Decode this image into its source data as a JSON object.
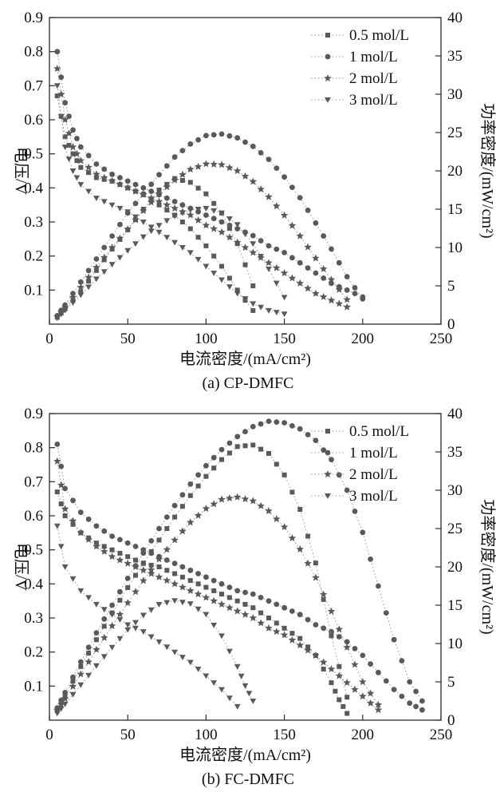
{
  "page": {
    "background": "#ffffff"
  },
  "chart_data": [
    {
      "type": "scatter",
      "title": "(a) CP-DMFC",
      "xlabel": "电流密度/(mA/cm²)",
      "ylabel_left": "电压/V",
      "ylabel_right": "功率密度/(mW/cm²)",
      "xlim": [
        0,
        250
      ],
      "xticks": [
        0,
        50,
        100,
        150,
        200,
        250
      ],
      "ylim_left": [
        0,
        0.9
      ],
      "yticks_left": [
        0.1,
        0.2,
        0.3,
        0.4,
        0.5,
        0.6,
        0.7,
        0.8,
        0.9
      ],
      "ylim_right": [
        0,
        40
      ],
      "yticks_right": [
        0,
        5,
        10,
        15,
        20,
        25,
        30,
        35,
        40
      ],
      "grid": false,
      "legend_position": "top-right",
      "marker_color": "#595959",
      "line_color": "#9a9a9a",
      "legend": [
        {
          "label": "0.5 mol/L",
          "marker": "square"
        },
        {
          "label": "1 mol/L",
          "marker": "circle"
        },
        {
          "label": "2 mol/L",
          "marker": "star"
        },
        {
          "label": "3 mol/L",
          "marker": "triangle-down"
        }
      ],
      "series": [
        {
          "name": "0.5 mol/L",
          "quantity": "voltage",
          "axis": "left",
          "marker": "square",
          "x": [
            5,
            10,
            15,
            20,
            30,
            40,
            50,
            60,
            70,
            80,
            90,
            100,
            110,
            120,
            130
          ],
          "y": [
            0.67,
            0.55,
            0.5,
            0.46,
            0.43,
            0.42,
            0.4,
            0.38,
            0.35,
            0.32,
            0.28,
            0.23,
            0.17,
            0.1,
            0.04
          ]
        },
        {
          "name": "1 mol/L",
          "quantity": "voltage",
          "axis": "left",
          "marker": "circle",
          "x": [
            5,
            10,
            15,
            20,
            30,
            40,
            50,
            60,
            70,
            80,
            90,
            100,
            110,
            120,
            130,
            140,
            150,
            160,
            170,
            180,
            190,
            200
          ],
          "y": [
            0.8,
            0.65,
            0.57,
            0.52,
            0.47,
            0.44,
            0.42,
            0.4,
            0.38,
            0.36,
            0.34,
            0.32,
            0.3,
            0.28,
            0.26,
            0.23,
            0.21,
            0.18,
            0.15,
            0.12,
            0.1,
            0.08
          ]
        },
        {
          "name": "2 mol/L",
          "quantity": "voltage",
          "axis": "left",
          "marker": "star",
          "x": [
            5,
            10,
            15,
            20,
            30,
            40,
            50,
            60,
            70,
            80,
            90,
            100,
            110,
            120,
            130,
            140,
            150,
            160,
            170,
            180,
            190
          ],
          "y": [
            0.75,
            0.6,
            0.52,
            0.48,
            0.44,
            0.42,
            0.4,
            0.38,
            0.36,
            0.34,
            0.32,
            0.29,
            0.27,
            0.24,
            0.21,
            0.18,
            0.15,
            0.12,
            0.09,
            0.07,
            0.05
          ]
        },
        {
          "name": "3 mol/L",
          "quantity": "voltage",
          "axis": "left",
          "marker": "triangle-down",
          "x": [
            5,
            10,
            15,
            20,
            30,
            40,
            50,
            60,
            70,
            80,
            90,
            100,
            110,
            120,
            130,
            140,
            150
          ],
          "y": [
            0.7,
            0.52,
            0.45,
            0.41,
            0.37,
            0.35,
            0.33,
            0.3,
            0.27,
            0.24,
            0.21,
            0.17,
            0.13,
            0.09,
            0.06,
            0.04,
            0.03
          ]
        },
        {
          "name": "0.5 mol/L",
          "quantity": "power",
          "axis": "right",
          "marker": "square",
          "x": [
            5,
            10,
            20,
            30,
            40,
            50,
            60,
            70,
            80,
            90,
            100,
            110,
            120,
            130
          ],
          "y": [
            0.9,
            2,
            4.2,
            7,
            9.8,
            12.3,
            15,
            17.5,
            19,
            18.5,
            17,
            14.5,
            10.5,
            5
          ]
        },
        {
          "name": "1 mol/L",
          "quantity": "power",
          "axis": "right",
          "marker": "circle",
          "x": [
            5,
            10,
            20,
            30,
            40,
            50,
            60,
            70,
            80,
            90,
            100,
            110,
            120,
            130,
            140,
            150,
            160,
            170,
            180,
            190,
            200
          ],
          "y": [
            1.1,
            2.5,
            5.5,
            8.5,
            11.5,
            14.5,
            17,
            19.5,
            21.8,
            23.5,
            24.6,
            24.8,
            24.3,
            23.2,
            21.5,
            19.2,
            16.5,
            13.2,
            9.8,
            6.2,
            3.3
          ]
        },
        {
          "name": "2 mol/L",
          "quantity": "power",
          "axis": "right",
          "marker": "star",
          "x": [
            5,
            10,
            20,
            30,
            40,
            50,
            60,
            70,
            80,
            90,
            100,
            110,
            120,
            130,
            140,
            150,
            160,
            170,
            180,
            190
          ],
          "y": [
            1,
            2.2,
            4.8,
            7.4,
            10,
            12.4,
            14.8,
            17,
            18.8,
            20.2,
            20.9,
            20.8,
            20,
            18.6,
            16.6,
            14.2,
            11.5,
            8.6,
            5.8,
            3.2
          ]
        },
        {
          "name": "3 mol/L",
          "quantity": "power",
          "axis": "right",
          "marker": "triangle-down",
          "x": [
            5,
            10,
            20,
            30,
            40,
            50,
            60,
            70,
            80,
            90,
            100,
            110,
            120,
            130,
            140,
            150
          ],
          "y": [
            0.8,
            1.8,
            3.8,
            5.9,
            7.8,
            9.6,
            11.4,
            12.9,
            14.1,
            14.9,
            15.1,
            14.5,
            13,
            10.5,
            7.2,
            3.5
          ]
        }
      ]
    },
    {
      "type": "scatter",
      "title": "(b) FC-DMFC",
      "xlabel": "电流密度/(mA/cm²)",
      "ylabel_left": "电压/V",
      "ylabel_right": "功率密度/(mW/cm²)",
      "xlim": [
        0,
        250
      ],
      "xticks": [
        0,
        50,
        100,
        150,
        200,
        250
      ],
      "ylim_left": [
        0,
        0.9
      ],
      "yticks_left": [
        0.1,
        0.2,
        0.3,
        0.4,
        0.5,
        0.6,
        0.7,
        0.8,
        0.9
      ],
      "ylim_right": [
        0,
        40
      ],
      "yticks_right": [
        0,
        5,
        10,
        15,
        20,
        25,
        30,
        35,
        40
      ],
      "grid": false,
      "legend_position": "top-right",
      "marker_color": "#595959",
      "line_color": "#9a9a9a",
      "legend": [
        {
          "label": "0.5 mol/L",
          "marker": "square"
        },
        {
          "label": "1 mol/L",
          "marker": "circle"
        },
        {
          "label": "2 mol/L",
          "marker": "star"
        },
        {
          "label": "3 mol/L",
          "marker": "triangle-down"
        }
      ],
      "series": [
        {
          "name": "0.5 mol/L",
          "quantity": "voltage",
          "axis": "left",
          "marker": "square",
          "x": [
            5,
            10,
            20,
            30,
            40,
            50,
            60,
            70,
            80,
            90,
            100,
            110,
            120,
            130,
            140,
            150,
            160,
            170,
            180,
            185,
            190
          ],
          "y": [
            0.67,
            0.6,
            0.55,
            0.52,
            0.5,
            0.48,
            0.46,
            0.45,
            0.43,
            0.41,
            0.39,
            0.37,
            0.35,
            0.33,
            0.3,
            0.27,
            0.24,
            0.19,
            0.11,
            0.06,
            0.02
          ]
        },
        {
          "name": "1 mol/L",
          "quantity": "voltage",
          "axis": "left",
          "marker": "circle",
          "x": [
            5,
            10,
            20,
            30,
            40,
            50,
            60,
            70,
            80,
            90,
            100,
            110,
            120,
            130,
            140,
            150,
            160,
            170,
            180,
            190,
            200,
            210,
            220,
            230,
            238
          ],
          "y": [
            0.81,
            0.68,
            0.61,
            0.57,
            0.54,
            0.52,
            0.5,
            0.48,
            0.46,
            0.44,
            0.42,
            0.4,
            0.38,
            0.37,
            0.35,
            0.33,
            0.31,
            0.28,
            0.26,
            0.23,
            0.19,
            0.14,
            0.09,
            0.05,
            0.03
          ]
        },
        {
          "name": "2 mol/L",
          "quantity": "voltage",
          "axis": "left",
          "marker": "star",
          "x": [
            5,
            10,
            20,
            30,
            40,
            50,
            60,
            70,
            80,
            90,
            100,
            110,
            120,
            130,
            140,
            150,
            160,
            170,
            180,
            190,
            200,
            210
          ],
          "y": [
            0.76,
            0.62,
            0.55,
            0.51,
            0.48,
            0.46,
            0.44,
            0.42,
            0.4,
            0.38,
            0.36,
            0.34,
            0.32,
            0.3,
            0.27,
            0.25,
            0.22,
            0.19,
            0.15,
            0.11,
            0.07,
            0.03
          ]
        },
        {
          "name": "3 mol/L",
          "quantity": "voltage",
          "axis": "left",
          "marker": "triangle-down",
          "x": [
            5,
            10,
            20,
            30,
            40,
            50,
            60,
            70,
            80,
            90,
            100,
            110,
            120
          ],
          "y": [
            0.57,
            0.45,
            0.38,
            0.34,
            0.31,
            0.28,
            0.26,
            0.23,
            0.2,
            0.17,
            0.13,
            0.09,
            0.04
          ]
        },
        {
          "name": "0.5 mol/L",
          "quantity": "power",
          "axis": "right",
          "marker": "square",
          "x": [
            5,
            10,
            20,
            30,
            40,
            50,
            60,
            70,
            80,
            90,
            100,
            110,
            120,
            130,
            140,
            150,
            160,
            170,
            180,
            190
          ],
          "y": [
            1.4,
            3.2,
            7,
            10.5,
            14,
            17.3,
            20.5,
            23.5,
            26.5,
            29.3,
            31.8,
            34,
            35.7,
            35.9,
            34.8,
            32,
            27.5,
            20.5,
            11,
            3
          ]
        },
        {
          "name": "1 mol/L",
          "quantity": "power",
          "axis": "right",
          "marker": "circle",
          "x": [
            5,
            10,
            20,
            30,
            40,
            50,
            60,
            70,
            80,
            90,
            100,
            110,
            120,
            130,
            140,
            150,
            160,
            170,
            180,
            190,
            200,
            210,
            220,
            230,
            238
          ],
          "y": [
            1.6,
            3.6,
            7.6,
            11.4,
            15,
            18.5,
            21.8,
            25,
            28,
            30.8,
            33.2,
            35.3,
            37,
            38.3,
            39,
            38.8,
            38,
            36.5,
            34,
            30,
            24.5,
            17.5,
            10.5,
            5,
            2.5
          ]
        },
        {
          "name": "2 mol/L",
          "quantity": "power",
          "axis": "right",
          "marker": "star",
          "x": [
            5,
            10,
            20,
            30,
            40,
            50,
            60,
            70,
            80,
            90,
            100,
            110,
            120,
            130,
            140,
            150,
            160,
            170,
            180,
            190,
            200,
            210
          ],
          "y": [
            1.3,
            2.8,
            6,
            9.2,
            12.3,
            15.3,
            18.2,
            21,
            23.5,
            25.8,
            27.6,
            28.8,
            29.1,
            28.6,
            27.3,
            25.2,
            22.3,
            18.6,
            14.2,
            9.5,
            5,
            2
          ]
        },
        {
          "name": "3 mol/L",
          "quantity": "power",
          "axis": "right",
          "marker": "triangle-down",
          "x": [
            5,
            10,
            20,
            30,
            40,
            50,
            60,
            70,
            80,
            90,
            100,
            110,
            120,
            125,
            130
          ],
          "y": [
            0.9,
            2.1,
            4.6,
            7.1,
            9.5,
            11.8,
            13.7,
            15.1,
            15.6,
            15.2,
            13.8,
            11,
            7,
            4.5,
            2.5
          ]
        }
      ]
    }
  ]
}
